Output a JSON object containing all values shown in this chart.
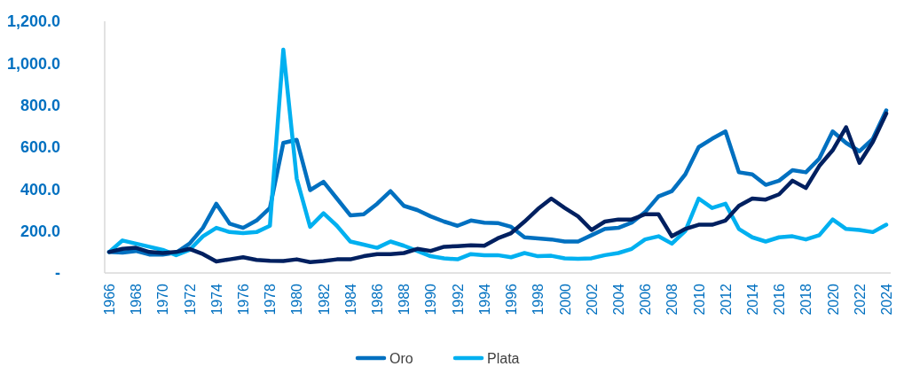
{
  "chart_data": {
    "type": "line",
    "categories": [
      "1966",
      null,
      "1968",
      null,
      "1970",
      null,
      "1972",
      null,
      "1974",
      null,
      "1976",
      null,
      "1978",
      null,
      "1980",
      null,
      "1982",
      null,
      "1984",
      null,
      "1986",
      null,
      "1988",
      null,
      "1990",
      null,
      "1992",
      null,
      "1994",
      null,
      "1996",
      null,
      "1998",
      null,
      "2000",
      null,
      "2002",
      null,
      "2004",
      null,
      "2006",
      null,
      "2008",
      null,
      "2010",
      null,
      "2012",
      null,
      "2014",
      null,
      "2016",
      null,
      "2018",
      null,
      "2020",
      null,
      "2022",
      null,
      "2024"
    ],
    "series": [
      {
        "name": "Oro",
        "color": "#0070c0",
        "values": [
          100,
          97,
          105,
          88,
          88,
          97,
          140,
          215,
          330,
          235,
          215,
          250,
          310,
          620,
          635,
          395,
          435,
          355,
          275,
          280,
          330,
          390,
          320,
          300,
          270,
          245,
          225,
          250,
          240,
          238,
          220,
          170,
          165,
          160,
          150,
          150,
          180,
          210,
          215,
          240,
          290,
          365,
          390,
          470,
          600,
          640,
          675,
          480,
          470,
          420,
          440,
          490,
          480,
          545,
          675,
          620,
          580,
          640,
          775
        ]
      },
      {
        "name": "Plata",
        "color": "#00b0f0",
        "values": [
          100,
          155,
          140,
          125,
          110,
          85,
          110,
          175,
          215,
          195,
          190,
          195,
          225,
          1065,
          450,
          220,
          285,
          225,
          150,
          135,
          120,
          150,
          130,
          105,
          80,
          70,
          65,
          90,
          85,
          85,
          75,
          95,
          80,
          82,
          70,
          68,
          70,
          85,
          95,
          115,
          160,
          175,
          140,
          200,
          355,
          310,
          330,
          210,
          170,
          150,
          170,
          175,
          160,
          180,
          255,
          210,
          205,
          195,
          230
        ]
      },
      {
        "color": "#002060",
        "values": [
          100,
          115,
          120,
          100,
          95,
          100,
          115,
          90,
          55,
          65,
          75,
          62,
          58,
          57,
          65,
          52,
          57,
          65,
          65,
          80,
          90,
          90,
          95,
          115,
          105,
          125,
          128,
          132,
          130,
          165,
          190,
          245,
          305,
          355,
          310,
          270,
          205,
          245,
          255,
          255,
          280,
          280,
          175,
          210,
          230,
          230,
          250,
          320,
          355,
          350,
          375,
          440,
          405,
          510,
          585,
          695,
          525,
          625,
          760
        ]
      }
    ],
    "ylim": [
      0,
      1200
    ],
    "yticks": [
      {
        "value": 0,
        "label": "-"
      },
      {
        "value": 200,
        "label": "200.0"
      },
      {
        "value": 400,
        "label": "400.0"
      },
      {
        "value": 600,
        "label": "600.0"
      },
      {
        "value": 800,
        "label": "800.0"
      },
      {
        "value": 1000,
        "label": "1,000.0"
      },
      {
        "value": 1200,
        "label": "1,200.0"
      }
    ],
    "legend": "bottom",
    "line_style": "solid"
  }
}
